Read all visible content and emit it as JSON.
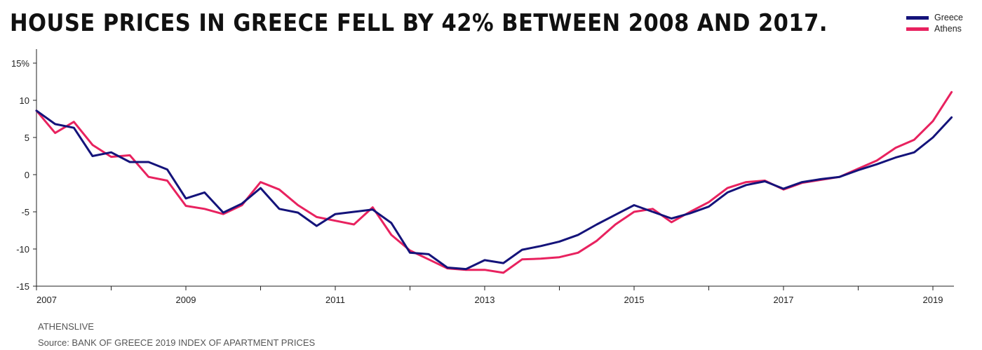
{
  "header": {
    "title": "HOUSE PRICES IN GREECE FELL BY 42% BETWEEN 2008 AND 2017."
  },
  "footer": {
    "credit": "ATHENSLIVE",
    "source": "Source: BANK OF GREECE 2019 INDEX OF APARTMENT PRICES"
  },
  "chart_data": {
    "type": "line",
    "title": "HOUSE PRICES IN GREECE FELL BY 42% BETWEEN 2008 AND 2017.",
    "xlabel": "",
    "ylabel": "",
    "xlim": [
      2007,
      2019.25
    ],
    "ylim": [
      -15,
      15
    ],
    "x_ticks": [
      2007,
      2009,
      2011,
      2013,
      2015,
      2017,
      2019
    ],
    "x_tick_labels": [
      "2007",
      "2009",
      "2011",
      "2013",
      "2015",
      "2017",
      "2019"
    ],
    "y_ticks": [
      15,
      10,
      5,
      0,
      -5,
      -10,
      -15
    ],
    "y_tick_labels": [
      "15%",
      "10",
      "5",
      "0",
      "-5",
      "-10",
      "-15"
    ],
    "grid": false,
    "legend_position": "top-right",
    "x": [
      2007.0,
      2007.25,
      2007.5,
      2007.75,
      2008.0,
      2008.25,
      2008.5,
      2008.75,
      2009.0,
      2009.25,
      2009.5,
      2009.75,
      2010.0,
      2010.25,
      2010.5,
      2010.75,
      2011.0,
      2011.25,
      2011.5,
      2011.75,
      2012.0,
      2012.25,
      2012.5,
      2012.75,
      2013.0,
      2013.25,
      2013.5,
      2013.75,
      2014.0,
      2014.25,
      2014.5,
      2014.75,
      2015.0,
      2015.25,
      2015.5,
      2015.75,
      2016.0,
      2016.25,
      2016.5,
      2016.75,
      2017.0,
      2017.25,
      2017.5,
      2017.75,
      2018.0,
      2018.25,
      2018.5,
      2018.75,
      2019.0,
      2019.25
    ],
    "series": [
      {
        "name": "Greece",
        "color": "#14137a",
        "values": [
          8.6,
          6.8,
          6.3,
          2.5,
          3.0,
          1.7,
          1.7,
          0.7,
          -3.2,
          -2.4,
          -5.1,
          -3.9,
          -1.8,
          -4.6,
          -5.1,
          -6.9,
          -5.3,
          -5.0,
          -4.7,
          -6.5,
          -10.5,
          -10.7,
          -12.5,
          -12.7,
          -11.5,
          -11.9,
          -10.1,
          -9.6,
          -9.0,
          -8.1,
          -6.7,
          -5.4,
          -4.1,
          -5.0,
          -5.9,
          -5.2,
          -4.3,
          -2.4,
          -1.4,
          -0.9,
          -1.9,
          -1.0,
          -0.6,
          -0.3,
          0.6,
          1.4,
          2.3,
          3.0,
          5.0,
          7.7
        ]
      },
      {
        "name": "Athens",
        "color": "#e8225f",
        "values": [
          8.6,
          5.6,
          7.1,
          4.0,
          2.4,
          2.6,
          -0.3,
          -0.8,
          -4.2,
          -4.6,
          -5.3,
          -4.1,
          -1.0,
          -2.0,
          -4.1,
          -5.7,
          -6.2,
          -6.7,
          -4.4,
          -8.1,
          -10.2,
          -11.4,
          -12.6,
          -12.8,
          -12.8,
          -13.2,
          -11.4,
          -11.3,
          -11.1,
          -10.5,
          -8.9,
          -6.7,
          -5.0,
          -4.6,
          -6.4,
          -5.0,
          -3.7,
          -1.8,
          -1.0,
          -0.8,
          -2.0,
          -1.1,
          -0.7,
          -0.3,
          0.8,
          1.9,
          3.6,
          4.7,
          7.2,
          11.1
        ]
      }
    ]
  }
}
